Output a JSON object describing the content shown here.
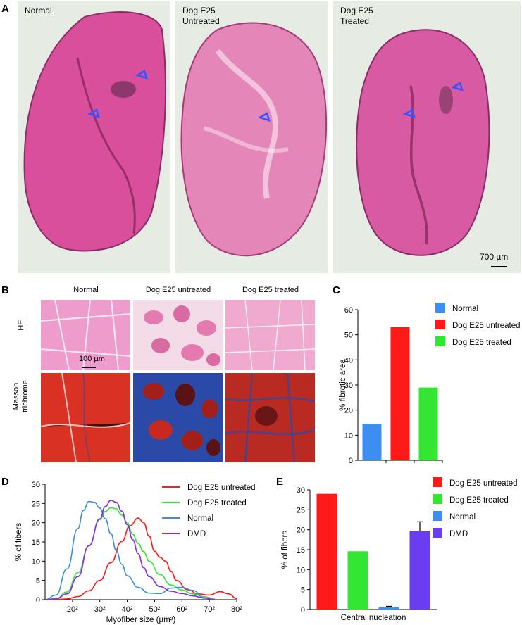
{
  "panel_a": {
    "letter": "A",
    "images": [
      {
        "label_lines": [
          "Normal"
        ]
      },
      {
        "label_lines": [
          "Dog E25",
          "Untreated"
        ]
      },
      {
        "label_lines": [
          "Dog E25",
          "Treated"
        ]
      }
    ],
    "scale_bar": "700 µm"
  },
  "panel_b": {
    "letter": "B",
    "columns": [
      "Normal",
      "Dog E25 untreated",
      "Dog E25 treated"
    ],
    "rows": [
      "HE",
      "Masson trichrome"
    ],
    "row_masson_lines": [
      "Masson",
      "trichrome"
    ],
    "scale_bar": "100 µm",
    "colors": {
      "he_bg": "#ec96c7",
      "he_fiber": "#f2b3d6",
      "masson_fiber": "#c8291f",
      "masson_blue": "#2b4aa8",
      "masson_dark": "#5a1215"
    }
  },
  "chart_data": [
    {
      "panel": "C",
      "type": "bar",
      "categories": [
        "Normal",
        "Dog E25 untreated",
        "Dog E25 treated"
      ],
      "values": [
        14.5,
        53,
        29
      ],
      "colors": [
        "#3d8ef3",
        "#ff1a1a",
        "#33e633"
      ],
      "ylabel": "% fibrotic area",
      "ylim": [
        0,
        60
      ],
      "yticks": [
        "0",
        "10",
        "20",
        "30",
        "40",
        "50",
        "60"
      ],
      "legend": [
        "Normal",
        "Dog E25 untreated",
        "Dog E25 treated"
      ],
      "legend_position": "right"
    },
    {
      "panel": "D",
      "type": "line",
      "xlabel": "Myofiber size (µm²)",
      "ylabel": "% of fibers",
      "xticks": [
        "20²",
        "30²",
        "40²",
        "50²",
        "60²",
        "70²",
        "80²"
      ],
      "xtick_values": [
        20,
        30,
        40,
        50,
        60,
        70,
        80
      ],
      "xlim": [
        10,
        80
      ],
      "yticks": [
        "0",
        "5",
        "10",
        "15",
        "20",
        "25",
        "30"
      ],
      "ylim": [
        0,
        30
      ],
      "legend_position": "top-right",
      "series": [
        {
          "name": "Dog E25 untreated",
          "color": "#ff1a1a",
          "x": [
            10,
            14,
            18,
            22,
            26,
            30,
            34,
            38,
            41,
            44,
            46,
            48,
            50,
            52,
            54,
            56,
            58,
            62,
            66,
            70,
            74,
            77,
            80
          ],
          "y": [
            0,
            0,
            0.2,
            0.8,
            2.3,
            5,
            9.6,
            15.1,
            19.2,
            21.2,
            20,
            16.5,
            12.6,
            11,
            10,
            7.4,
            5,
            2.6,
            1.5,
            1.2,
            2.1,
            1.5,
            0.3
          ]
        },
        {
          "name": "Dog E25 treated",
          "color": "#33e633",
          "x": [
            10,
            14,
            18,
            22,
            26,
            30,
            32,
            34,
            36,
            38,
            40,
            42,
            44,
            46,
            48,
            52,
            56,
            60,
            64,
            68,
            72
          ],
          "y": [
            0,
            0.3,
            2,
            7,
            14,
            20.8,
            22.9,
            23.9,
            23.6,
            22,
            20,
            17,
            14.6,
            12.5,
            10,
            6.5,
            3.8,
            2.5,
            1.5,
            0.8,
            0.2
          ]
        },
        {
          "name": "Normal",
          "color": "#3a8fd6",
          "x": [
            10,
            14,
            18,
            22,
            24,
            26,
            28,
            30,
            32,
            34,
            36,
            38,
            40,
            44,
            48,
            52,
            56,
            60,
            64,
            68,
            72
          ],
          "y": [
            0,
            1.2,
            8,
            18.5,
            23.2,
            25.5,
            25.3,
            23.8,
            21,
            17.2,
            12.8,
            9.2,
            6.2,
            3.2,
            1.7,
            1.6,
            3,
            3.2,
            2.4,
            0.5,
            0
          ]
        },
        {
          "name": "DMD",
          "color": "#8b2be3",
          "x": [
            10,
            14,
            18,
            22,
            26,
            30,
            32,
            34,
            36,
            38,
            40,
            42,
            44,
            46,
            48,
            52,
            56,
            60,
            64,
            68,
            72
          ],
          "y": [
            0,
            0.2,
            1.5,
            6,
            14,
            21,
            24.2,
            25.8,
            25.3,
            23,
            19.5,
            15.6,
            12,
            8.3,
            6,
            3.4,
            2.2,
            1.6,
            1,
            0.4,
            0
          ]
        }
      ]
    },
    {
      "panel": "E",
      "type": "bar",
      "xlabel": "Central nucleation",
      "ylabel": "% of fibers",
      "categories": [
        "Dog E25 untreated",
        "Dog E25 treated",
        "Normal",
        "DMD"
      ],
      "values": [
        29,
        14.6,
        0.6,
        19.7
      ],
      "errors": [
        0,
        0,
        0.2,
        2.3
      ],
      "colors": [
        "#ff1a1a",
        "#33e633",
        "#3d8ef3",
        "#6b3df2"
      ],
      "ylim": [
        0,
        30
      ],
      "yticks": [
        "0",
        "5",
        "10",
        "15",
        "20",
        "25",
        "30"
      ],
      "legend": [
        "Dog E25 untreated",
        "Dog E25 treated",
        "Normal",
        "DMD"
      ],
      "legend_position": "top-right"
    }
  ],
  "panel_letters": {
    "c": "C",
    "d": "D",
    "e": "E"
  }
}
